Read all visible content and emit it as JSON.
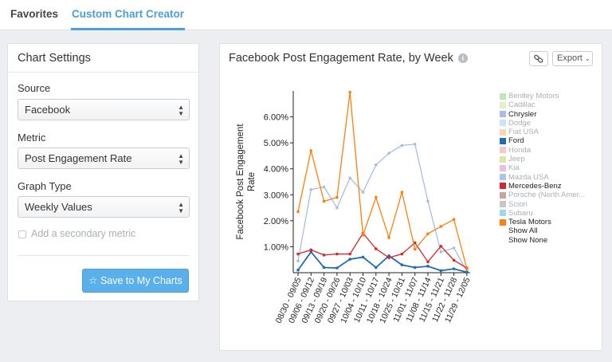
{
  "nav": {
    "tabs": [
      {
        "label": "Favorites"
      },
      {
        "label": "Custom Chart Creator"
      }
    ]
  },
  "settings": {
    "title": "Chart Settings",
    "source_label": "Source",
    "source_value": "Facebook",
    "metric_label": "Metric",
    "metric_value": "Post Engagement Rate",
    "graph_type_label": "Graph Type",
    "graph_type_value": "Weekly Values",
    "secondary_label": "Add a secondary metric",
    "save_label": "Save to My Charts",
    "save_icon": "star-outline-icon",
    "select_icon": "up-down-arrows-icon"
  },
  "chart_panel": {
    "title": "Facebook Post Engagement Rate, by Week",
    "info_icon": "info-circle-icon",
    "link_icon": "link-icon",
    "export_label": "Export",
    "export_icon": "chevron-down-icon"
  },
  "legend": {
    "items": [
      {
        "label": "Bentley Motors",
        "color": "#bde8b8",
        "active": false
      },
      {
        "label": "Cadillac",
        "color": "#e6efc4",
        "active": false
      },
      {
        "label": "Chrysler",
        "color": "#a8bde6",
        "active": true
      },
      {
        "label": "Dodge",
        "color": "#c9e5f2",
        "active": false
      },
      {
        "label": "Fiat USA",
        "color": "#f7d8b2",
        "active": false
      },
      {
        "label": "Ford",
        "color": "#1f6cb0",
        "active": true
      },
      {
        "label": "Honda",
        "color": "#f4c9c9",
        "active": false
      },
      {
        "label": "Jeep",
        "color": "#dde7a0",
        "active": false
      },
      {
        "label": "Kia",
        "color": "#eabedf",
        "active": false
      },
      {
        "label": "Mazda USA",
        "color": "#a9c6e8",
        "active": false
      },
      {
        "label": "Mercedes-Benz",
        "color": "#d62728",
        "active": true
      },
      {
        "label": "Porsche (North Amer...",
        "color": "#c9a39c",
        "active": false
      },
      {
        "label": "Scion",
        "color": "#c7c7c7",
        "active": false
      },
      {
        "label": "Subaru",
        "color": "#9fd8e8",
        "active": false
      },
      {
        "label": "Tesla Motors",
        "color": "#ff7f0e",
        "active": true
      }
    ],
    "show_all": "Show All",
    "show_none": "Show None"
  },
  "chart_data": {
    "type": "line",
    "ylabel": "Facebook Post Engagement Rate",
    "ylim": [
      0,
      7
    ],
    "yticks": [
      0.01,
      0.02,
      0.03,
      0.04,
      0.05,
      0.06
    ],
    "ytick_labels": [
      "1.00%",
      "2.00%",
      "3.00%",
      "4.00%",
      "5.00%",
      "6.00%"
    ],
    "categories": [
      "08/30 - 09/05",
      "09/06 - 09/12",
      "09/13 - 09/19",
      "09/20 - 09/26",
      "09/27 - 10/03",
      "10/04 - 10/10",
      "10/11 - 10/17",
      "10/18 - 10/24",
      "10/25 - 10/31",
      "11/01 - 11/07",
      "11/08 - 11/14",
      "11/15 - 11/21",
      "11/22 - 11/28",
      "11/29 - 12/05"
    ],
    "series": [
      {
        "name": "Chrysler",
        "color": "#a8bde6",
        "values": [
          0.0045,
          0.032,
          0.033,
          0.025,
          0.0365,
          0.031,
          0.0415,
          0.046,
          0.049,
          0.0495,
          0.0275,
          0.008,
          0.0095,
          0.0005
        ]
      },
      {
        "name": "Ford",
        "color": "#1f6cb0",
        "values": [
          0.001,
          0.008,
          0.002,
          0.0018,
          0.0052,
          0.006,
          0.002,
          0.0065,
          0.003,
          0.002,
          0.0025,
          0.0008,
          0.0015,
          0.0002
        ]
      },
      {
        "name": "Mercedes-Benz",
        "color": "#d62728",
        "values": [
          0.0072,
          0.0088,
          0.0068,
          0.0072,
          0.0072,
          0.0152,
          0.0092,
          0.0058,
          0.0072,
          0.0115,
          0.0042,
          0.0102,
          0.0048,
          0.0018
        ]
      },
      {
        "name": "Tesla Motors",
        "color": "#ff7f0e",
        "values": [
          0.0235,
          0.047,
          0.0275,
          0.029,
          0.0695,
          0.0145,
          0.029,
          0.0135,
          0.031,
          0.009,
          0.015,
          0.0178,
          0.0205,
          0.0015
        ]
      }
    ],
    "grid": false,
    "legend_position": "right"
  }
}
